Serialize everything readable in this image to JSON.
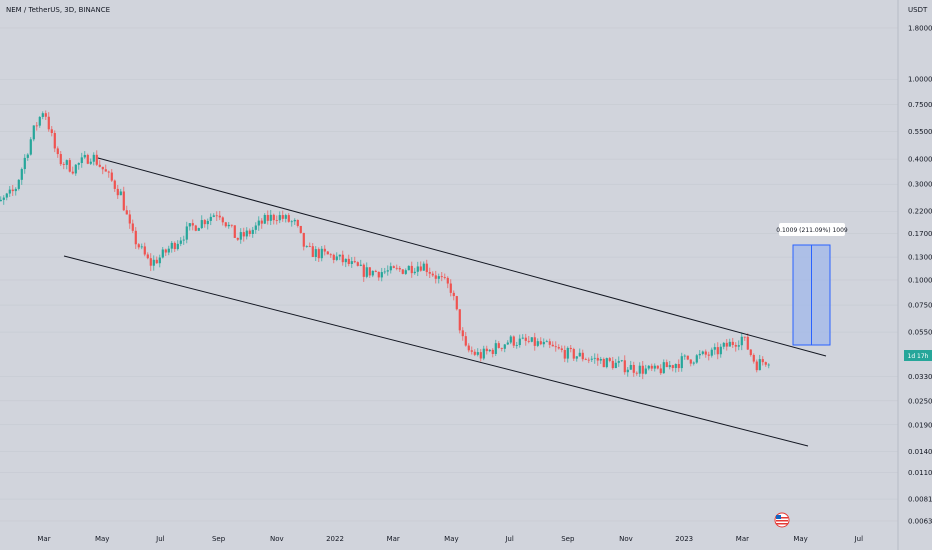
{
  "header": {
    "title": "NEM / TetherUS, 3D, BINANCE"
  },
  "chart_data": {
    "type": "candlestick",
    "title": "NEM / TetherUS, 3D, BINANCE",
    "price_scale_unit": "USDT",
    "log_scale": true,
    "y_ticks": [
      "1.8000",
      "1.0000",
      "0.7500",
      "0.5500",
      "0.4000",
      "0.3000",
      "0.2200",
      "0.1700",
      "0.1300",
      "0.1000",
      "0.0750",
      "0.0550",
      "0.0330",
      "0.0250",
      "0.0190",
      "0.0140",
      "0.0110",
      "0.0081",
      "0.0063"
    ],
    "x_ticks": [
      "Mar",
      "May",
      "Jul",
      "Sep",
      "Nov",
      "2022",
      "Mar",
      "May",
      "Jul",
      "Sep",
      "Nov",
      "2023",
      "Mar",
      "May",
      "Jul"
    ],
    "price_badge": "1d 17h",
    "measure_label": "0.1009 (211.09%) 1009",
    "colors": {
      "up": "#26a69a",
      "down": "#ef5350",
      "channel": "#131722",
      "measure_fill": "#a9bde8",
      "measure_stroke": "#2962ff"
    },
    "price_path": [
      [
        "2021-01",
        0.21
      ],
      [
        "2021-02",
        0.28
      ],
      [
        "2021-02-20",
        0.55
      ],
      [
        "2021-03",
        0.72
      ],
      [
        "2021-03-15",
        0.4
      ],
      [
        "2021-04",
        0.36
      ],
      [
        "2021-04-20",
        0.42
      ],
      [
        "2021-05",
        0.36
      ],
      [
        "2021-05-20",
        0.27
      ],
      [
        "2021-06",
        0.17
      ],
      [
        "2021-06-20",
        0.12
      ],
      [
        "2021-07",
        0.13
      ],
      [
        "2021-08",
        0.18
      ],
      [
        "2021-09",
        0.22
      ],
      [
        "2021-09-20",
        0.16
      ],
      [
        "2021-10",
        0.17
      ],
      [
        "2021-10-20",
        0.2
      ],
      [
        "2021-11",
        0.21
      ],
      [
        "2021-11-20",
        0.19
      ],
      [
        "2021-12",
        0.14
      ],
      [
        "2022-01",
        0.13
      ],
      [
        "2022-02",
        0.11
      ],
      [
        "2022-03",
        0.11
      ],
      [
        "2022-04",
        0.12
      ],
      [
        "2022-04-20",
        0.1
      ],
      [
        "2022-05",
        0.09
      ],
      [
        "2022-05-15",
        0.045
      ],
      [
        "2022-06",
        0.042
      ],
      [
        "2022-07",
        0.05
      ],
      [
        "2022-08",
        0.048
      ],
      [
        "2022-09",
        0.043
      ],
      [
        "2022-10",
        0.04
      ],
      [
        "2022-11",
        0.037
      ],
      [
        "2022-12",
        0.035
      ],
      [
        "2023-01",
        0.04
      ],
      [
        "2023-02",
        0.043
      ],
      [
        "2023-03",
        0.052
      ],
      [
        "2023-03-15",
        0.038
      ],
      [
        "2023-04",
        0.041
      ]
    ]
  }
}
